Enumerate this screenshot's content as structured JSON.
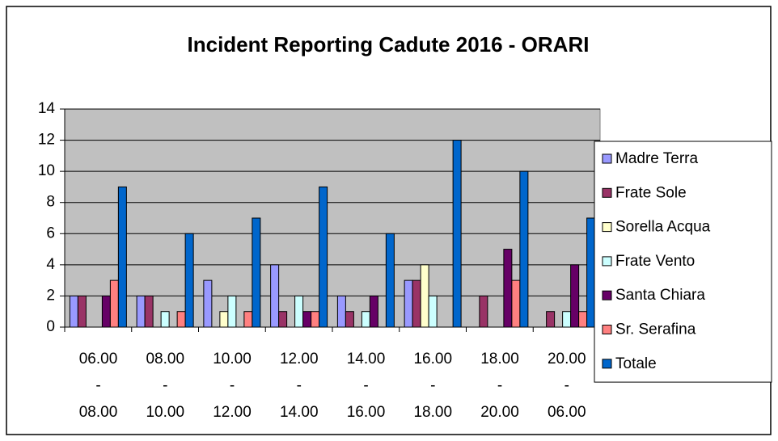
{
  "chart_data": {
    "type": "bar",
    "title": "Incident Reporting Cadute 2016 - ORARI",
    "categories": [
      "06.00\n-\n08.00",
      "08.00\n-\n10.00",
      "10.00\n-\n12.00",
      "12.00\n-\n14.00",
      "14.00\n-\n16.00",
      "16.00\n-\n18.00",
      "18.00\n-\n20.00",
      "20.00\n-\n06.00"
    ],
    "series": [
      {
        "name": "Madre Terra",
        "color": "#9999ff",
        "values": [
          2,
          2,
          3,
          4,
          2,
          3,
          0,
          0
        ]
      },
      {
        "name": "Frate Sole",
        "color": "#993366",
        "values": [
          2,
          2,
          0,
          1,
          1,
          3,
          2,
          1
        ]
      },
      {
        "name": "Sorella Acqua",
        "color": "#ffffcc",
        "values": [
          0,
          0,
          1,
          0,
          0,
          4,
          0,
          0
        ]
      },
      {
        "name": "Frate Vento",
        "color": "#ccffff",
        "values": [
          0,
          1,
          2,
          2,
          1,
          2,
          0,
          1
        ]
      },
      {
        "name": "Santa Chiara",
        "color": "#660066",
        "values": [
          2,
          0,
          0,
          1,
          2,
          0,
          5,
          4
        ]
      },
      {
        "name": "Sr. Serafina",
        "color": "#ff8080",
        "values": [
          3,
          1,
          1,
          1,
          0,
          0,
          3,
          1
        ]
      },
      {
        "name": "Totale",
        "color": "#0066cc",
        "values": [
          9,
          6,
          7,
          9,
          6,
          12,
          10,
          7
        ]
      }
    ],
    "ylim": [
      0,
      14
    ],
    "yticks": [
      0,
      2,
      4,
      6,
      8,
      10,
      12,
      14
    ],
    "grid": true,
    "legend": "right"
  }
}
